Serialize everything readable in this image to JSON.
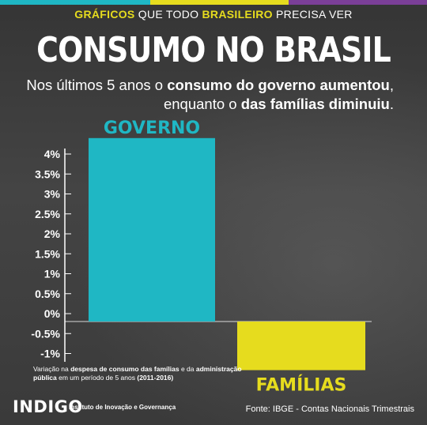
{
  "header": {
    "part1": "GRÁFICOS",
    "part2": " QUE TODO ",
    "part3": "BRASILEIRO",
    "part4": " PRECISA VER"
  },
  "title": "CONSUMO NO BRASIL",
  "subtitle": {
    "l1a": "Nos últimos 5 anos o ",
    "l1b": "consumo do governo aumentou",
    "l1c": ",",
    "l2a": "enquanto o ",
    "l2b": "das famílias diminuiu",
    "l2c": "."
  },
  "note": {
    "a": "Variação na ",
    "b": "despesa de consumo das famílias",
    "c": " e da ",
    "d": "administração pública",
    "e": " em um período de 5 anos ",
    "f": "(2011-2016)"
  },
  "logo": "INDIGO",
  "logo_sub": "Instituto de Inovação e Governança",
  "source": "Fonte: IBGE - Contas Nacionais Trimestrais",
  "chart_data": {
    "type": "bar",
    "categories": [
      "GOVERNO",
      "FAMÍLIAS"
    ],
    "values": [
      4.4,
      -1.1
    ],
    "colors": [
      "#1fb7c4",
      "#e6dc1e"
    ],
    "yticks": [
      "4%",
      "3.5%",
      "3%",
      "2.5%",
      "2%",
      "1.5%",
      "1%",
      "0.5%",
      "0%",
      "-0.5%",
      "-1%"
    ],
    "ytick_values": [
      4,
      3.5,
      3,
      2.5,
      2,
      1.5,
      1,
      0.5,
      0,
      -0.5,
      -1
    ],
    "ylim": [
      -1.1,
      4.4
    ],
    "grid": false
  }
}
